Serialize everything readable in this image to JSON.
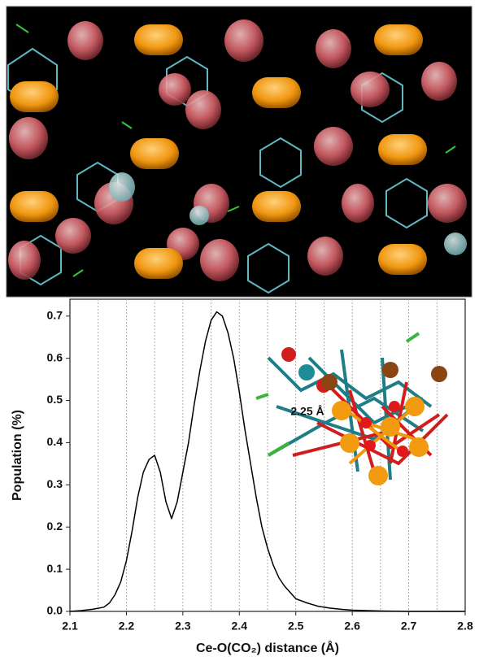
{
  "chart_data": {
    "type": "line",
    "x_label": "Ce-O(CO₂) distance (Å)",
    "y_label": "Population (%)",
    "annotation": "2.25 Å",
    "x": [
      2.1,
      2.12,
      2.14,
      2.16,
      2.17,
      2.18,
      2.19,
      2.2,
      2.21,
      2.22,
      2.23,
      2.24,
      2.25,
      2.26,
      2.27,
      2.28,
      2.29,
      2.3,
      2.31,
      2.32,
      2.33,
      2.34,
      2.35,
      2.36,
      2.37,
      2.38,
      2.39,
      2.4,
      2.41,
      2.42,
      2.43,
      2.44,
      2.45,
      2.46,
      2.47,
      2.48,
      2.49,
      2.5,
      2.52,
      2.54,
      2.56,
      2.58,
      2.6,
      2.65,
      2.7,
      2.75,
      2.8
    ],
    "series": [
      {
        "color": "#000000",
        "values": [
          0,
          0.002,
          0.005,
          0.01,
          0.02,
          0.04,
          0.07,
          0.12,
          0.19,
          0.27,
          0.33,
          0.36,
          0.37,
          0.33,
          0.26,
          0.22,
          0.26,
          0.33,
          0.4,
          0.49,
          0.57,
          0.64,
          0.69,
          0.71,
          0.7,
          0.66,
          0.6,
          0.52,
          0.43,
          0.35,
          0.27,
          0.2,
          0.15,
          0.11,
          0.08,
          0.06,
          0.045,
          0.03,
          0.02,
          0.012,
          0.008,
          0.005,
          0.003,
          0.001,
          0,
          0,
          0
        ]
      }
    ],
    "xlim": [
      2.1,
      2.8
    ],
    "ylim": [
      0,
      0.74
    ],
    "xticks": [
      2.1,
      2.2,
      2.3,
      2.4,
      2.5,
      2.6,
      2.7,
      2.8
    ],
    "yticks": [
      {
        "value": 0,
        "label": "0.0"
      },
      0.1,
      0.2,
      0.3,
      0.4,
      0.5,
      0.6,
      0.7
    ],
    "x_grid": [
      2.15,
      2.2,
      2.25,
      2.3,
      2.35,
      2.4,
      2.45,
      2.5,
      2.55,
      2.6,
      2.65,
      2.7,
      2.75
    ],
    "grid_color": "#9a9a9a"
  }
}
